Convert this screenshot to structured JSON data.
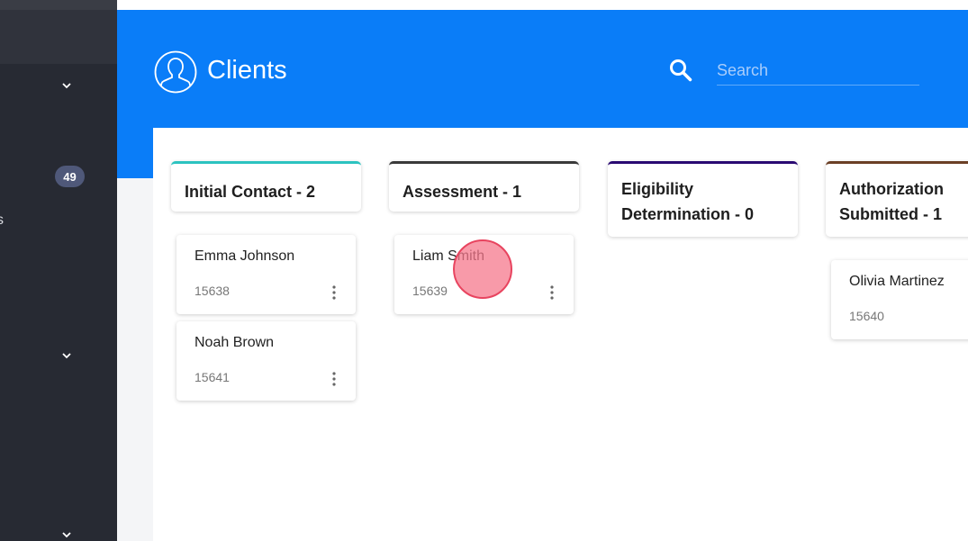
{
  "header": {
    "title": "Clients",
    "search_placeholder": "Search",
    "icons": {
      "title": "user-circle-icon",
      "search": "search-icon"
    }
  },
  "sidebar": {
    "badge": "49",
    "partial_label": "s"
  },
  "colors": {
    "header": "#0a7df8",
    "sidebar": "#272a33"
  },
  "columns": [
    {
      "title": "Initial Contact - 2",
      "color": "#2cc3c0",
      "cards": [
        {
          "name": "Emma Johnson",
          "id": "15638"
        },
        {
          "name": "Noah Brown",
          "id": "15641"
        }
      ]
    },
    {
      "title": "Assessment - 1",
      "color": "#3a3a3a",
      "cards": [
        {
          "name": "Liam Smith",
          "id": "15639"
        }
      ]
    },
    {
      "title": "Eligibility Determination - 0",
      "color": "#2a0a72",
      "cards": []
    },
    {
      "title": "Authorization Submitted - 1",
      "color": "#6b3f25",
      "cards": [
        {
          "name": "Olivia Martinez",
          "id": "15640"
        }
      ]
    }
  ]
}
